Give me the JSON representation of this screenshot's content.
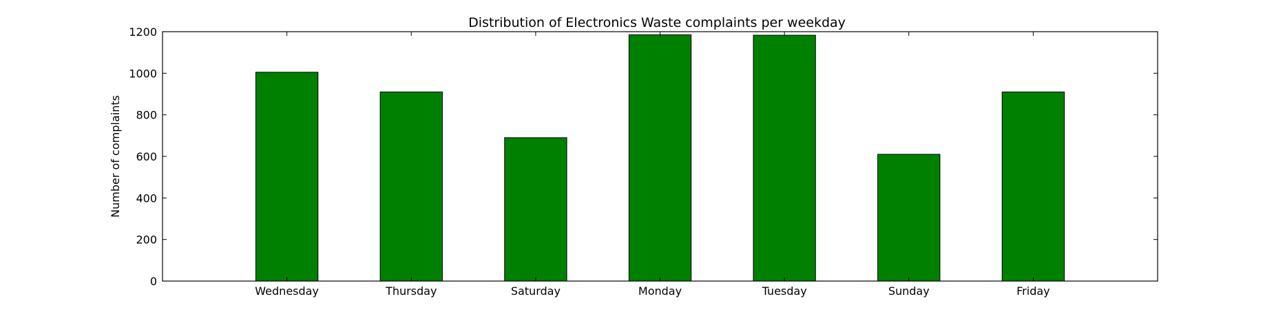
{
  "chart_data": {
    "type": "bar",
    "title": "Distribution of  Electronics Waste complaints per weekday",
    "xlabel": "",
    "ylabel": "Number of complaints",
    "categories": [
      "Wednesday",
      "Thursday",
      "Saturday",
      "Monday",
      "Tuesday",
      "Sunday",
      "Friday"
    ],
    "values": [
      1005,
      910,
      690,
      1185,
      1183,
      610,
      910
    ],
    "ylim": [
      0,
      1200
    ],
    "yticks": [
      0,
      200,
      400,
      600,
      800,
      1000,
      1200
    ],
    "grid": false,
    "legend": "none",
    "bar_color": "#008000"
  }
}
